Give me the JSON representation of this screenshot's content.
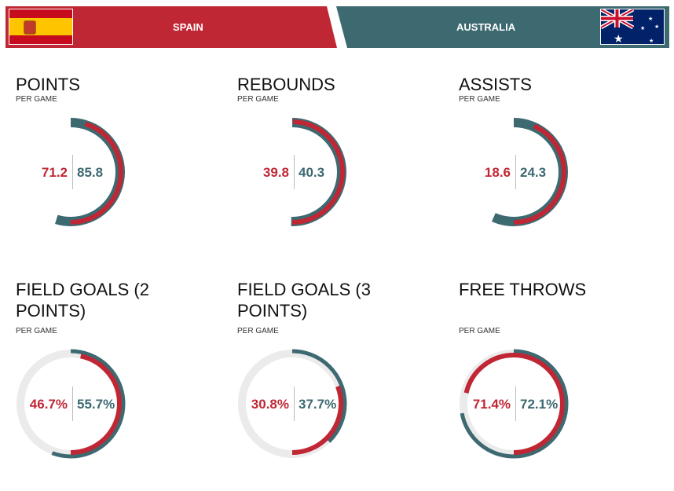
{
  "header": {
    "team_left": "SPAIN",
    "team_right": "AUSTRALIA",
    "flag_left": "spain-flag",
    "flag_right": "australia-flag"
  },
  "colors": {
    "spain": "#c02735",
    "australia": "#3d6970",
    "track": "#ebebeb"
  },
  "stats": [
    {
      "title": "POINTS",
      "sub": "PER GAME",
      "left": "71.2",
      "right": "85.8",
      "lv": 71.2,
      "rv": 85.8,
      "mode": "share"
    },
    {
      "title": "REBOUNDS",
      "sub": "PER GAME",
      "left": "39.8",
      "right": "40.3",
      "lv": 39.8,
      "rv": 40.3,
      "mode": "share"
    },
    {
      "title": "ASSISTS",
      "sub": "PER GAME",
      "left": "18.6",
      "right": "24.3",
      "lv": 18.6,
      "rv": 24.3,
      "mode": "share"
    },
    {
      "title": "FIELD GOALS (2 POINTS)",
      "sub": "PER GAME",
      "left": "46.7%",
      "right": "55.7%",
      "lv": 46.7,
      "rv": 55.7,
      "mode": "percent"
    },
    {
      "title": "FIELD GOALS (3 POINTS)",
      "sub": "PER GAME",
      "left": "30.8%",
      "right": "37.7%",
      "lv": 30.8,
      "rv": 37.7,
      "mode": "percent"
    },
    {
      "title": "FREE THROWS",
      "sub": "PER GAME",
      "left": "71.4%",
      "right": "72.1%",
      "lv": 71.4,
      "rv": 72.1,
      "mode": "percent"
    }
  ]
}
